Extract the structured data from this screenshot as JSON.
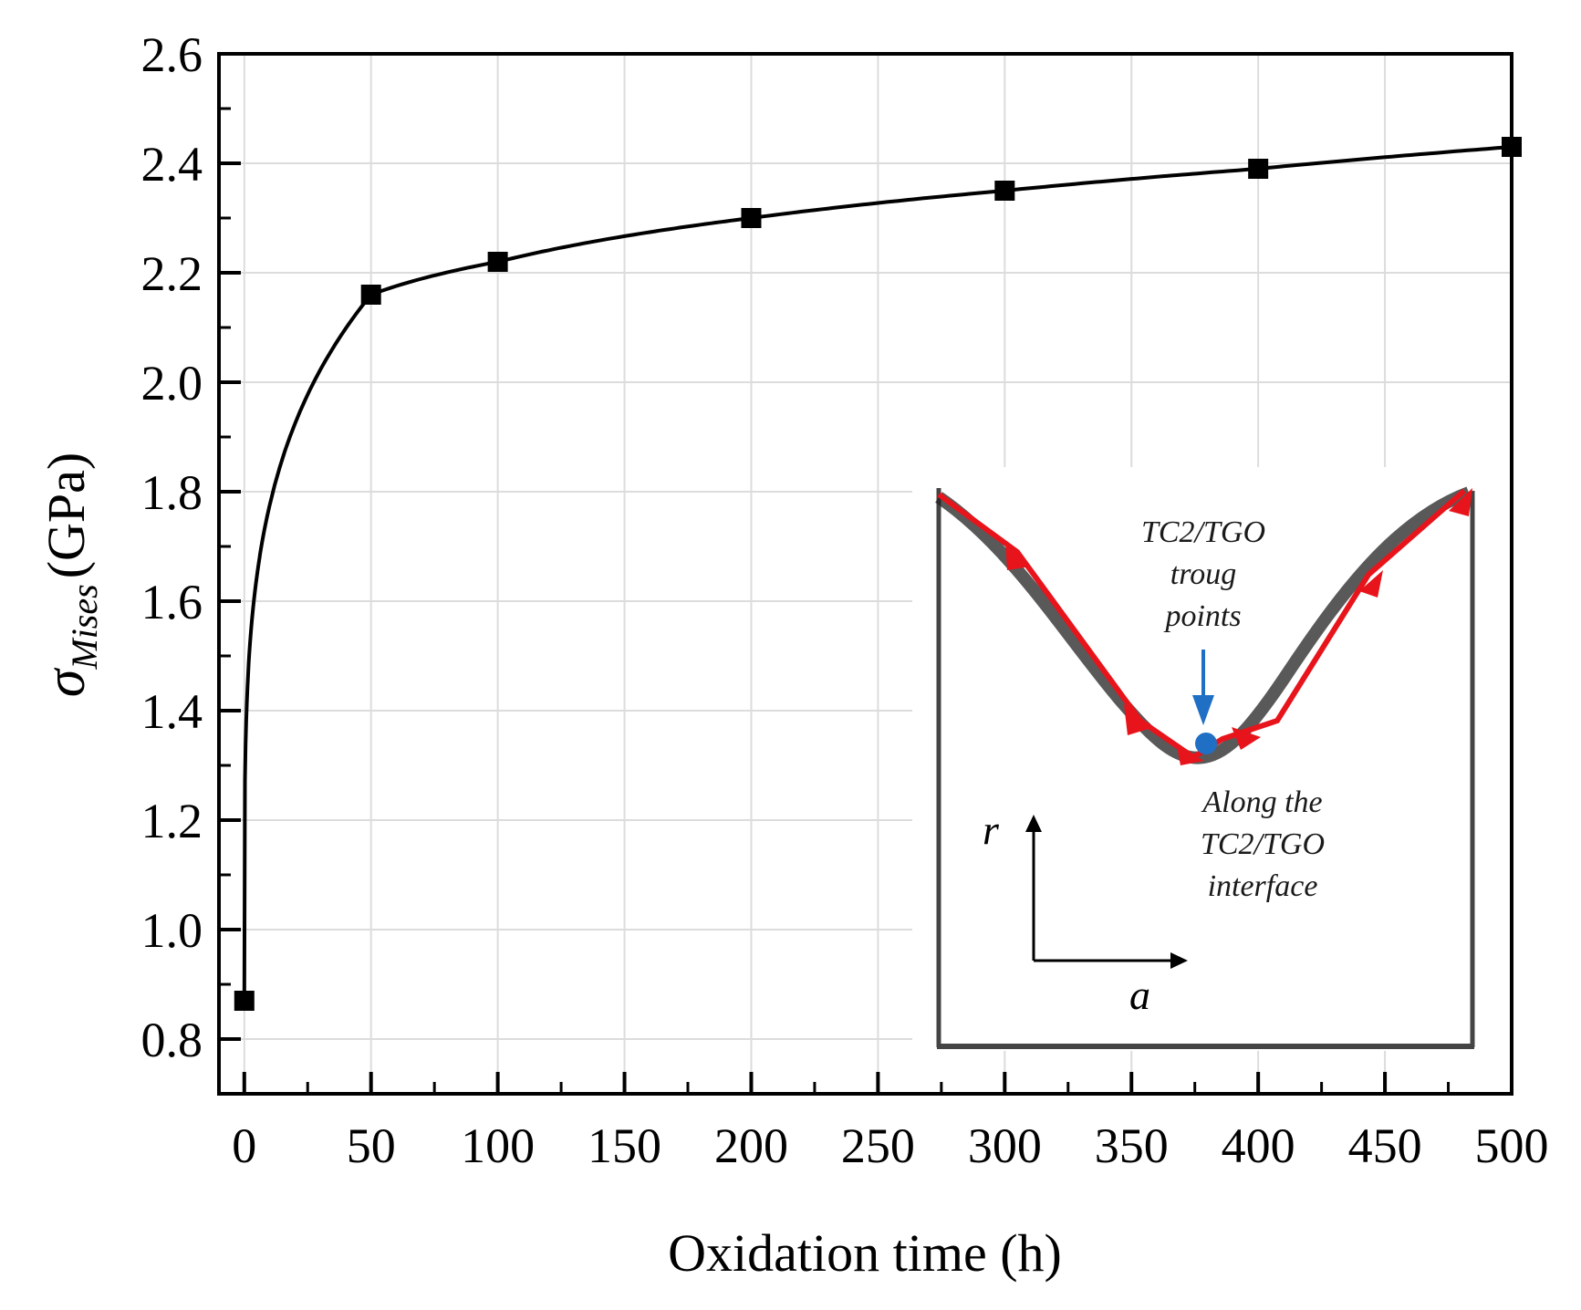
{
  "chart_data": {
    "type": "line",
    "xlabel": "Oxidation time (h)",
    "ylabel": {
      "symbol": "σ",
      "subscript": "Mises",
      "unit": "(GPa)"
    },
    "xlim": [
      -10,
      500
    ],
    "ylim": [
      0.7,
      2.6
    ],
    "x_ticks": [
      0,
      50,
      100,
      150,
      200,
      250,
      300,
      350,
      400,
      450,
      500
    ],
    "y_ticks": [
      0.8,
      1.0,
      1.2,
      1.4,
      1.6,
      1.8,
      2.0,
      2.2,
      2.4,
      2.6
    ],
    "x_tick_labels": [
      "0",
      "50",
      "100",
      "150",
      "200",
      "250",
      "300",
      "350",
      "400",
      "450",
      "500"
    ],
    "y_tick_labels": [
      "0.8",
      "1.0",
      "1.2",
      "1.4",
      "1.6",
      "1.8",
      "2.0",
      "2.2",
      "2.4",
      "2.6"
    ],
    "grid": true,
    "series": [
      {
        "name": "σMises",
        "marker": "square",
        "color": "#000000",
        "x": [
          0,
          50,
          100,
          200,
          300,
          400,
          500
        ],
        "y": [
          0.87,
          2.16,
          2.22,
          2.3,
          2.35,
          2.39,
          2.43
        ]
      }
    ],
    "inset": {
      "annotation_top": [
        "TC2/TGO",
        "troug",
        "points"
      ],
      "annotation_bottom": [
        "Along the",
        "TC2/TGO",
        "interface"
      ],
      "axis_r": "r",
      "axis_a": "a",
      "curve_color": "#e8141b",
      "point_color": "#1f6fc4",
      "arrow_color": "#1f6fc4"
    }
  }
}
